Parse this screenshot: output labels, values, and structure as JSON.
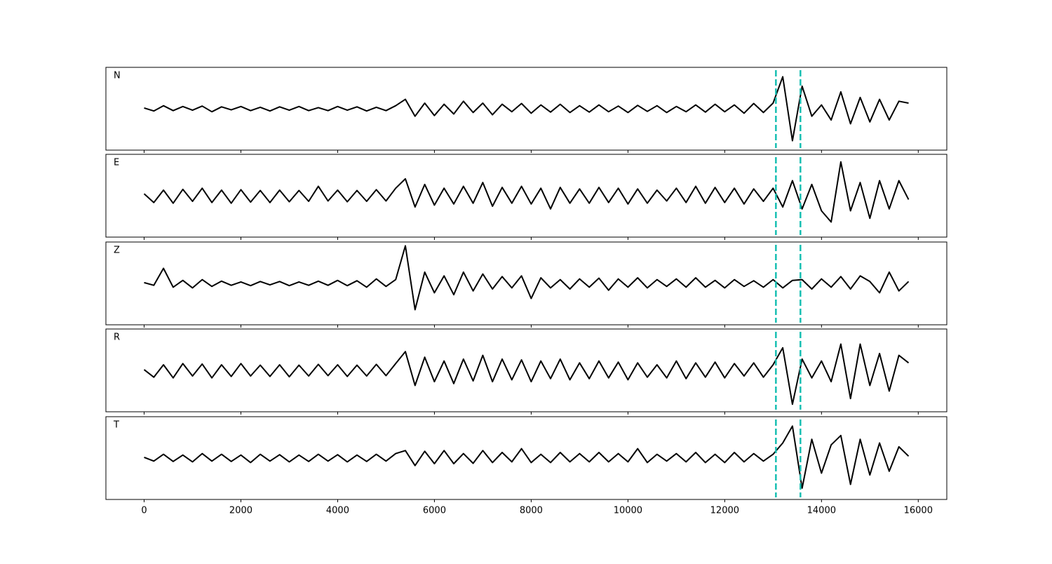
{
  "chart_data": {
    "type": "line",
    "subplots": true,
    "x": [
      0,
      200,
      400,
      600,
      800,
      1000,
      1200,
      1400,
      1600,
      1800,
      2000,
      2200,
      2400,
      2600,
      2800,
      3000,
      3200,
      3400,
      3600,
      3800,
      4000,
      4200,
      4400,
      4600,
      4800,
      5000,
      5200,
      5400,
      5600,
      5800,
      6000,
      6200,
      6400,
      6600,
      6800,
      7000,
      7200,
      7400,
      7600,
      7800,
      8000,
      8200,
      8400,
      8600,
      8800,
      9000,
      9200,
      9400,
      9600,
      9800,
      10000,
      10200,
      10400,
      10600,
      10800,
      11000,
      11200,
      11400,
      11600,
      11800,
      12000,
      12200,
      12400,
      12600,
      12800,
      13000,
      13200,
      13400,
      13600,
      13800,
      14000,
      14200,
      14400,
      14600,
      14800,
      15000,
      15200,
      15400,
      15600,
      15800
    ],
    "series": [
      {
        "name": "N",
        "color": "#000000",
        "values": [
          0.02,
          -0.06,
          0.08,
          -0.05,
          0.06,
          -0.04,
          0.07,
          -0.08,
          0.05,
          -0.03,
          0.06,
          -0.05,
          0.04,
          -0.06,
          0.05,
          -0.04,
          0.06,
          -0.05,
          0.03,
          -0.05,
          0.06,
          -0.04,
          0.05,
          -0.06,
          0.04,
          -0.05,
          0.08,
          0.25,
          -0.2,
          0.15,
          -0.18,
          0.12,
          -0.14,
          0.2,
          -0.1,
          0.15,
          -0.16,
          0.12,
          -0.08,
          0.14,
          -0.12,
          0.1,
          -0.09,
          0.12,
          -0.1,
          0.08,
          -0.09,
          0.1,
          -0.08,
          0.07,
          -0.1,
          0.09,
          -0.07,
          0.08,
          -0.1,
          0.06,
          -0.08,
          0.1,
          -0.09,
          0.12,
          -0.08,
          0.1,
          -0.12,
          0.14,
          -0.1,
          0.15,
          0.85,
          -0.85,
          0.6,
          -0.2,
          0.1,
          -0.3,
          0.45,
          -0.4,
          0.3,
          -0.35,
          0.25,
          -0.3,
          0.2,
          0.15
        ]
      },
      {
        "name": "E",
        "color": "#000000",
        "values": [
          0.05,
          -0.18,
          0.15,
          -0.2,
          0.17,
          -0.15,
          0.2,
          -0.18,
          0.15,
          -0.2,
          0.16,
          -0.17,
          0.14,
          -0.18,
          0.15,
          -0.16,
          0.14,
          -0.15,
          0.25,
          -0.14,
          0.15,
          -0.16,
          0.14,
          -0.15,
          0.16,
          -0.14,
          0.2,
          0.45,
          -0.3,
          0.3,
          -0.25,
          0.2,
          -0.22,
          0.25,
          -0.2,
          0.35,
          -0.28,
          0.22,
          -0.2,
          0.25,
          -0.22,
          0.2,
          -0.35,
          0.22,
          -0.2,
          0.18,
          -0.2,
          0.22,
          -0.18,
          0.2,
          -0.22,
          0.18,
          -0.2,
          0.15,
          -0.14,
          0.2,
          -0.18,
          0.25,
          -0.2,
          0.22,
          -0.18,
          0.2,
          -0.22,
          0.18,
          -0.15,
          0.2,
          -0.3,
          0.4,
          -0.35,
          0.3,
          -0.4,
          -0.7,
          0.9,
          -0.4,
          0.35,
          -0.6,
          0.4,
          -0.35,
          0.4,
          -0.1
        ]
      },
      {
        "name": "Z",
        "color": "#000000",
        "values": [
          0.02,
          -0.05,
          0.4,
          -0.1,
          0.08,
          -0.12,
          0.1,
          -0.08,
          0.06,
          -0.05,
          0.04,
          -0.06,
          0.05,
          -0.04,
          0.05,
          -0.06,
          0.04,
          -0.05,
          0.06,
          -0.05,
          0.08,
          -0.06,
          0.07,
          -0.1,
          0.12,
          -0.08,
          0.1,
          1.0,
          -0.7,
          0.3,
          -0.25,
          0.2,
          -0.3,
          0.3,
          -0.2,
          0.25,
          -0.15,
          0.18,
          -0.12,
          0.2,
          -0.4,
          0.15,
          -0.12,
          0.1,
          -0.15,
          0.12,
          -0.1,
          0.14,
          -0.18,
          0.12,
          -0.1,
          0.15,
          -0.12,
          0.1,
          -0.08,
          0.12,
          -0.1,
          0.15,
          -0.1,
          0.08,
          -0.12,
          0.1,
          -0.08,
          0.07,
          -0.1,
          0.1,
          -0.12,
          0.08,
          0.1,
          -0.15,
          0.12,
          -0.1,
          0.18,
          -0.15,
          0.2,
          0.05,
          -0.25,
          0.3,
          -0.2,
          0.05
        ]
      },
      {
        "name": "R",
        "color": "#000000",
        "values": [
          0.02,
          -0.18,
          0.15,
          -0.2,
          0.18,
          -0.15,
          0.17,
          -0.2,
          0.15,
          -0.16,
          0.18,
          -0.15,
          0.14,
          -0.16,
          0.15,
          -0.17,
          0.14,
          -0.15,
          0.16,
          -0.14,
          0.15,
          -0.16,
          0.14,
          -0.15,
          0.16,
          -0.14,
          0.18,
          0.5,
          -0.4,
          0.35,
          -0.3,
          0.25,
          -0.35,
          0.3,
          -0.28,
          0.4,
          -0.3,
          0.3,
          -0.25,
          0.28,
          -0.3,
          0.25,
          -0.22,
          0.3,
          -0.25,
          0.2,
          -0.22,
          0.25,
          -0.2,
          0.22,
          -0.25,
          0.2,
          -0.18,
          0.15,
          -0.2,
          0.25,
          -0.22,
          0.2,
          -0.18,
          0.22,
          -0.2,
          0.18,
          -0.15,
          0.2,
          -0.18,
          0.15,
          0.6,
          -0.9,
          0.3,
          -0.2,
          0.25,
          -0.3,
          0.7,
          -0.75,
          0.7,
          -0.4,
          0.45,
          -0.55,
          0.4,
          0.2
        ]
      },
      {
        "name": "T",
        "color": "#000000",
        "values": [
          0.02,
          -0.08,
          0.1,
          -0.09,
          0.08,
          -0.1,
          0.12,
          -0.08,
          0.1,
          -0.09,
          0.08,
          -0.12,
          0.1,
          -0.08,
          0.09,
          -0.1,
          0.08,
          -0.09,
          0.1,
          -0.08,
          0.09,
          -0.1,
          0.08,
          -0.09,
          0.1,
          -0.08,
          0.12,
          0.2,
          -0.2,
          0.18,
          -0.15,
          0.2,
          -0.15,
          0.12,
          -0.14,
          0.2,
          -0.12,
          0.15,
          -0.1,
          0.25,
          -0.12,
          0.1,
          -0.12,
          0.15,
          -0.1,
          0.12,
          -0.1,
          0.15,
          -0.1,
          0.12,
          -0.1,
          0.25,
          -0.12,
          0.1,
          -0.08,
          0.12,
          -0.1,
          0.15,
          -0.12,
          0.1,
          -0.12,
          0.15,
          -0.1,
          0.12,
          -0.08,
          0.1,
          0.4,
          0.85,
          -0.8,
          0.5,
          -0.4,
          0.35,
          0.6,
          -0.7,
          0.5,
          -0.45,
          0.4,
          -0.35,
          0.3,
          0.05
        ]
      }
    ],
    "xlim": [
      -790,
      16590
    ],
    "xticks": [
      0,
      2000,
      4000,
      6000,
      8000,
      10000,
      12000,
      14000,
      16000
    ],
    "ylim": [
      -1.1,
      1.1
    ],
    "vlines": [
      13058,
      13565
    ],
    "vline_color": "#17bfb2",
    "vline_style": "dashed"
  }
}
